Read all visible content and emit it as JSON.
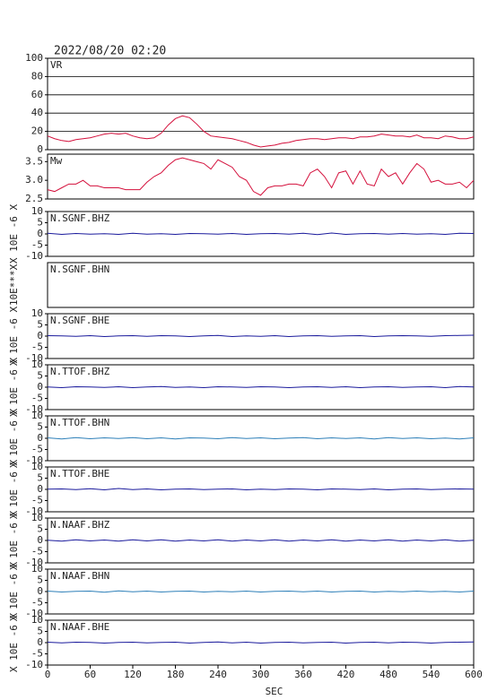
{
  "chart_data": [
    {
      "type": "line",
      "title": "2022/08/20 02:20",
      "label": "VR",
      "color": "#d4103c",
      "grid": true,
      "xlim": [
        0,
        600
      ],
      "ylim": [
        0,
        100
      ],
      "yticks": [
        0,
        20,
        40,
        60,
        80,
        100
      ],
      "x": [
        0,
        10,
        20,
        30,
        40,
        50,
        60,
        70,
        80,
        90,
        100,
        110,
        120,
        130,
        140,
        150,
        160,
        170,
        180,
        190,
        200,
        210,
        220,
        230,
        240,
        250,
        260,
        270,
        280,
        290,
        300,
        310,
        320,
        330,
        340,
        350,
        360,
        370,
        380,
        390,
        400,
        410,
        420,
        430,
        440,
        450,
        460,
        470,
        480,
        490,
        500,
        510,
        520,
        530,
        540,
        550,
        560,
        570,
        580,
        590,
        600
      ],
      "values": [
        15,
        12,
        10,
        9,
        11,
        12,
        13,
        15,
        17,
        18,
        17,
        18,
        15,
        13,
        12,
        13,
        18,
        27,
        34,
        37,
        35,
        28,
        20,
        15,
        14,
        13,
        12,
        10,
        8,
        5,
        3,
        4,
        5,
        7,
        8,
        10,
        11,
        12,
        12,
        11,
        12,
        13,
        13,
        12,
        14,
        14,
        15,
        17,
        16,
        15,
        15,
        14,
        16,
        13,
        13,
        12,
        15,
        14,
        12,
        12,
        14
      ]
    },
    {
      "type": "line",
      "label": "Mw",
      "color": "#d4103c",
      "xlim": [
        0,
        600
      ],
      "ylim": [
        2.5,
        3.7
      ],
      "yticks": [
        2.5,
        {
          "value": 3,
          "label": "3.0"
        },
        3.5
      ],
      "x": [
        0,
        10,
        20,
        30,
        40,
        50,
        60,
        70,
        80,
        90,
        100,
        110,
        120,
        130,
        140,
        150,
        160,
        170,
        180,
        190,
        200,
        210,
        220,
        230,
        240,
        250,
        260,
        270,
        280,
        290,
        300,
        310,
        320,
        330,
        340,
        350,
        360,
        370,
        380,
        390,
        400,
        410,
        420,
        430,
        440,
        450,
        460,
        470,
        480,
        490,
        500,
        510,
        520,
        530,
        540,
        550,
        560,
        570,
        580,
        590,
        600
      ],
      "values": [
        2.75,
        2.7,
        2.8,
        2.9,
        2.9,
        3.0,
        2.85,
        2.85,
        2.8,
        2.8,
        2.8,
        2.75,
        2.75,
        2.75,
        2.95,
        3.1,
        3.2,
        3.4,
        3.55,
        3.6,
        3.55,
        3.5,
        3.45,
        3.3,
        3.55,
        3.45,
        3.35,
        3.1,
        3.0,
        2.7,
        2.6,
        2.8,
        2.85,
        2.85,
        2.9,
        2.9,
        2.85,
        3.2,
        3.3,
        3.1,
        2.8,
        3.2,
        3.25,
        2.9,
        3.25,
        2.9,
        2.85,
        3.3,
        3.1,
        3.2,
        2.9,
        3.2,
        3.45,
        3.3,
        2.95,
        3.0,
        2.9,
        2.9,
        2.95,
        2.8,
        3.0
      ]
    },
    {
      "type": "line",
      "label": "N.SGNF.BHZ",
      "ylabel": "X 10E -6 X",
      "color": "#1a1a9c",
      "xlim": [
        0,
        600
      ],
      "ylim": [
        -10,
        10
      ],
      "yticks": [
        -10,
        -5,
        0,
        5,
        10
      ],
      "x": [
        0,
        20,
        40,
        60,
        80,
        100,
        120,
        140,
        160,
        180,
        200,
        220,
        240,
        260,
        280,
        300,
        320,
        340,
        360,
        380,
        400,
        420,
        440,
        460,
        480,
        500,
        520,
        540,
        560,
        580,
        600
      ],
      "values": [
        0.3,
        -0.2,
        0.2,
        -0.1,
        0.1,
        -0.2,
        0.3,
        -0.1,
        0.1,
        -0.2,
        0.2,
        0.1,
        -0.1,
        0.2,
        -0.2,
        0.1,
        0.2,
        -0.1,
        0.3,
        -0.3,
        0.4,
        -0.2,
        0.1,
        0.2,
        -0.1,
        0.2,
        -0.1,
        0.1,
        -0.2,
        0.3,
        0.2
      ]
    },
    {
      "type": "line",
      "label": "N.SGNF.BHN",
      "ylabel": "10E***X",
      "xlim": [
        0,
        600
      ]
    },
    {
      "type": "line",
      "label": "N.SGNF.BHE",
      "ylabel": "X 10E -6 X",
      "color": "#1a1a9c",
      "xlim": [
        0,
        600
      ],
      "ylim": [
        -10,
        10
      ],
      "yticks": [
        -10,
        -5,
        0,
        5,
        10
      ],
      "x": [
        0,
        20,
        40,
        60,
        80,
        100,
        120,
        140,
        160,
        180,
        200,
        220,
        240,
        260,
        280,
        300,
        320,
        340,
        360,
        380,
        400,
        420,
        440,
        460,
        480,
        500,
        520,
        540,
        560,
        580,
        600
      ],
      "values": [
        0.2,
        0.1,
        -0.1,
        0.2,
        -0.2,
        0.1,
        0.2,
        -0.1,
        0.2,
        0.1,
        -0.2,
        0.1,
        0.3,
        -0.2,
        0.1,
        -0.1,
        0.2,
        -0.2,
        0.1,
        0.2,
        -0.1,
        0.1,
        0.2,
        -0.2,
        0.1,
        0.2,
        0.1,
        -0.1,
        0.2,
        0.3,
        0.4
      ]
    },
    {
      "type": "line",
      "label": "N.TTOF.BHZ",
      "ylabel": "X 10E -6 X",
      "color": "#1a1a9c",
      "xlim": [
        0,
        600
      ],
      "ylim": [
        -10,
        10
      ],
      "yticks": [
        -10,
        -5,
        0,
        5,
        10
      ],
      "x": [
        0,
        20,
        40,
        60,
        80,
        100,
        120,
        140,
        160,
        180,
        200,
        220,
        240,
        260,
        280,
        300,
        320,
        340,
        360,
        380,
        400,
        420,
        440,
        460,
        480,
        500,
        520,
        540,
        560,
        580,
        600
      ],
      "values": [
        0.1,
        -0.2,
        0.2,
        0.1,
        -0.1,
        0.2,
        -0.2,
        0.1,
        0.3,
        -0.1,
        0.1,
        -0.2,
        0.2,
        0.1,
        -0.1,
        0.2,
        0.1,
        -0.2,
        0.1,
        0.2,
        -0.1,
        0.2,
        -0.2,
        0.1,
        0.2,
        -0.1,
        0.1,
        0.2,
        -0.2,
        0.3,
        0.1
      ]
    },
    {
      "type": "line",
      "label": "N.TTOF.BHN",
      "ylabel": "X 10E -6 X",
      "color": "#2d7fb8",
      "xlim": [
        0,
        600
      ],
      "ylim": [
        -10,
        10
      ],
      "yticks": [
        -10,
        -5,
        0,
        5,
        10
      ],
      "x": [
        0,
        20,
        40,
        60,
        80,
        100,
        120,
        140,
        160,
        180,
        200,
        220,
        240,
        260,
        280,
        300,
        320,
        340,
        360,
        380,
        400,
        420,
        440,
        460,
        480,
        500,
        520,
        540,
        560,
        580,
        600
      ],
      "values": [
        0.2,
        -0.3,
        0.3,
        -0.2,
        0.2,
        -0.1,
        0.3,
        -0.2,
        0.2,
        -0.3,
        0.2,
        0.1,
        -0.2,
        0.3,
        -0.1,
        0.2,
        -0.2,
        0.1,
        0.3,
        -0.2,
        0.2,
        -0.1,
        0.2,
        -0.3,
        0.3,
        -0.1,
        0.2,
        -0.2,
        0.1,
        -0.3,
        0.2
      ]
    },
    {
      "type": "line",
      "label": "N.TTOF.BHE",
      "ylabel": "X 10E -6 X",
      "color": "#1a1a9c",
      "xlim": [
        0,
        600
      ],
      "ylim": [
        -10,
        10
      ],
      "yticks": [
        -10,
        -5,
        0,
        5,
        10
      ],
      "x": [
        0,
        20,
        40,
        60,
        80,
        100,
        120,
        140,
        160,
        180,
        200,
        220,
        240,
        260,
        280,
        300,
        320,
        340,
        360,
        380,
        400,
        420,
        440,
        460,
        480,
        500,
        520,
        540,
        560,
        580,
        600
      ],
      "values": [
        0.1,
        0.2,
        -0.1,
        0.3,
        -0.2,
        0.4,
        -0.1,
        0.2,
        -0.2,
        0.1,
        0.2,
        -0.1,
        0.1,
        0.2,
        -0.2,
        0.1,
        -0.1,
        0.2,
        0.1,
        -0.2,
        0.2,
        0.1,
        -0.1,
        0.2,
        -0.2,
        0.1,
        0.2,
        -0.1,
        0.1,
        0.2,
        0.1
      ]
    },
    {
      "type": "line",
      "label": "N.NAAF.BHZ",
      "ylabel": "X 10E -6 X",
      "color": "#1a1a9c",
      "xlim": [
        0,
        600
      ],
      "ylim": [
        -10,
        10
      ],
      "yticks": [
        -10,
        -5,
        0,
        5,
        10
      ],
      "x": [
        0,
        20,
        40,
        60,
        80,
        100,
        120,
        140,
        160,
        180,
        200,
        220,
        240,
        260,
        280,
        300,
        320,
        340,
        360,
        380,
        400,
        420,
        440,
        460,
        480,
        500,
        520,
        540,
        560,
        580,
        600
      ],
      "values": [
        0.1,
        -0.3,
        0.3,
        -0.2,
        0.2,
        -0.3,
        0.3,
        -0.2,
        0.3,
        -0.3,
        0.2,
        -0.2,
        0.3,
        -0.3,
        0.2,
        -0.2,
        0.3,
        -0.3,
        0.2,
        -0.2,
        0.3,
        -0.3,
        0.2,
        -0.2,
        0.3,
        -0.3,
        0.2,
        -0.2,
        0.3,
        -0.3,
        0.1
      ]
    },
    {
      "type": "line",
      "label": "N.NAAF.BHN",
      "ylabel": "X 10E -6 X",
      "color": "#2d7fb8",
      "xlim": [
        0,
        600
      ],
      "ylim": [
        -10,
        10
      ],
      "yticks": [
        -10,
        -5,
        0,
        5,
        10
      ],
      "x": [
        0,
        20,
        40,
        60,
        80,
        100,
        120,
        140,
        160,
        180,
        200,
        220,
        240,
        260,
        280,
        300,
        320,
        340,
        360,
        380,
        400,
        420,
        440,
        460,
        480,
        500,
        520,
        540,
        560,
        580,
        600
      ],
      "values": [
        0.2,
        -0.2,
        0.1,
        0.2,
        -0.3,
        0.3,
        -0.1,
        0.2,
        -0.2,
        0.1,
        0.2,
        -0.2,
        0.1,
        -0.1,
        0.2,
        -0.2,
        0.1,
        0.2,
        -0.1,
        0.2,
        -0.2,
        0.1,
        0.2,
        -0.2,
        0.1,
        -0.1,
        0.2,
        -0.1,
        0.1,
        -0.2,
        0.2
      ]
    },
    {
      "type": "line",
      "label": "N.NAAF.BHE",
      "ylabel": "X 10E -6 X",
      "color": "#1a1a9c",
      "xlim": [
        0,
        600
      ],
      "ylim": [
        -10,
        10
      ],
      "yticks": [
        -10,
        -5,
        0,
        5,
        10
      ],
      "x": [
        0,
        20,
        40,
        60,
        80,
        100,
        120,
        140,
        160,
        180,
        200,
        220,
        240,
        260,
        280,
        300,
        320,
        340,
        360,
        380,
        400,
        420,
        440,
        460,
        480,
        500,
        520,
        540,
        560,
        580,
        600
      ],
      "values": [
        0.2,
        -0.1,
        0.2,
        0.1,
        -0.2,
        0.1,
        0.2,
        -0.1,
        0.1,
        0.2,
        -0.2,
        0.1,
        0.3,
        -0.1,
        0.2,
        -0.2,
        0.1,
        0.2,
        -0.1,
        0.1,
        0.2,
        -0.2,
        0.1,
        0.2,
        -0.1,
        0.2,
        0.1,
        -0.2,
        0.1,
        0.2,
        0.3
      ],
      "xticks": [
        0,
        60,
        120,
        180,
        240,
        300,
        360,
        420,
        480,
        540,
        600
      ],
      "xlabel": "SEC"
    }
  ]
}
